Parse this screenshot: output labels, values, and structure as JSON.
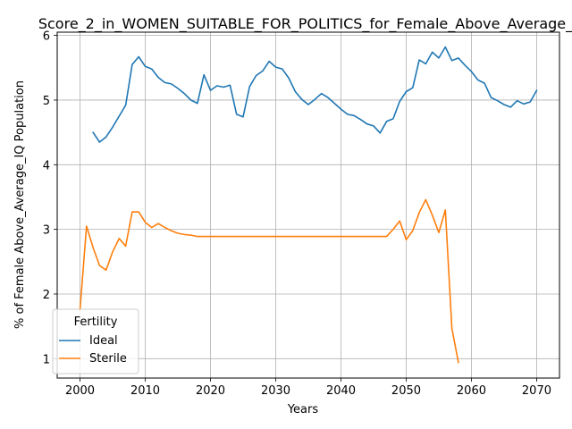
{
  "chart_data": {
    "type": "line",
    "title": "Score_2_in_WOMEN_SUITABLE_FOR_POLITICS_for_Female_Above_Average_",
    "xlabel": "Years",
    "ylabel": "% of Female Above_Average_IQ Population",
    "xlim": [
      1996.5,
      2073.5
    ],
    "ylim": [
      0.7,
      6.05
    ],
    "xticks": [
      2000,
      2010,
      2020,
      2030,
      2040,
      2050,
      2060,
      2070
    ],
    "yticks": [
      1,
      2,
      3,
      4,
      5,
      6
    ],
    "grid": true,
    "legend": {
      "title": "Fertility",
      "placement": "lower-left"
    },
    "series": [
      {
        "name": "Ideal",
        "color": "#1f77b4",
        "x": [
          2002,
          2003,
          2004,
          2005,
          2006,
          2007,
          2008,
          2009,
          2010,
          2011,
          2012,
          2013,
          2014,
          2015,
          2016,
          2017,
          2018,
          2019,
          2020,
          2021,
          2022,
          2023,
          2024,
          2025,
          2026,
          2027,
          2028,
          2029,
          2030,
          2031,
          2032,
          2033,
          2034,
          2035,
          2036,
          2037,
          2038,
          2039,
          2040,
          2041,
          2042,
          2043,
          2044,
          2045,
          2046,
          2047,
          2048,
          2049,
          2050,
          2051,
          2052,
          2053,
          2054,
          2055,
          2056,
          2057,
          2058,
          2059,
          2060,
          2061,
          2062,
          2063,
          2064,
          2065,
          2066,
          2067,
          2068,
          2069,
          2070
        ],
        "y": [
          4.5,
          4.35,
          4.43,
          4.58,
          4.75,
          4.92,
          5.55,
          5.67,
          5.52,
          5.48,
          5.35,
          5.27,
          5.25,
          5.18,
          5.1,
          5.0,
          4.95,
          5.39,
          5.15,
          5.22,
          5.2,
          5.23,
          4.78,
          4.74,
          5.21,
          5.38,
          5.45,
          5.6,
          5.51,
          5.48,
          5.34,
          5.13,
          5.01,
          4.93,
          5.01,
          5.1,
          5.04,
          4.95,
          4.86,
          4.78,
          4.76,
          4.7,
          4.63,
          4.6,
          4.49,
          4.67,
          4.71,
          4.98,
          5.13,
          5.19,
          5.62,
          5.56,
          5.74,
          5.65,
          5.82,
          5.61,
          5.65,
          5.54,
          5.44,
          5.31,
          5.26,
          5.04,
          4.99,
          4.93,
          4.89,
          4.99,
          4.94,
          4.97,
          5.15
        ]
      },
      {
        "name": "Sterile",
        "color": "#ff7f0e",
        "x": [
          2000,
          2001,
          2002,
          2003,
          2004,
          2005,
          2006,
          2007,
          2008,
          2009,
          2010,
          2011,
          2012,
          2013,
          2014,
          2015,
          2016,
          2017,
          2018,
          2019,
          2020,
          2021,
          2022,
          2023,
          2024,
          2025,
          2026,
          2027,
          2028,
          2029,
          2030,
          2031,
          2032,
          2033,
          2034,
          2035,
          2036,
          2037,
          2038,
          2039,
          2040,
          2041,
          2042,
          2043,
          2044,
          2045,
          2046,
          2047,
          2048,
          2049,
          2050,
          2051,
          2052,
          2053,
          2054,
          2055,
          2056,
          2057,
          2058
        ],
        "y": [
          1.75,
          3.05,
          2.72,
          2.44,
          2.37,
          2.65,
          2.86,
          2.74,
          3.27,
          3.27,
          3.11,
          3.03,
          3.09,
          3.03,
          2.98,
          2.94,
          2.92,
          2.91,
          2.89,
          2.89,
          2.89,
          2.89,
          2.89,
          2.89,
          2.89,
          2.89,
          2.89,
          2.89,
          2.89,
          2.89,
          2.89,
          2.89,
          2.89,
          2.89,
          2.89,
          2.89,
          2.89,
          2.89,
          2.89,
          2.89,
          2.89,
          2.89,
          2.89,
          2.89,
          2.89,
          2.89,
          2.89,
          2.89,
          3.0,
          3.13,
          2.84,
          2.98,
          3.26,
          3.46,
          3.22,
          2.95,
          3.3,
          1.47,
          0.94
        ]
      }
    ]
  }
}
